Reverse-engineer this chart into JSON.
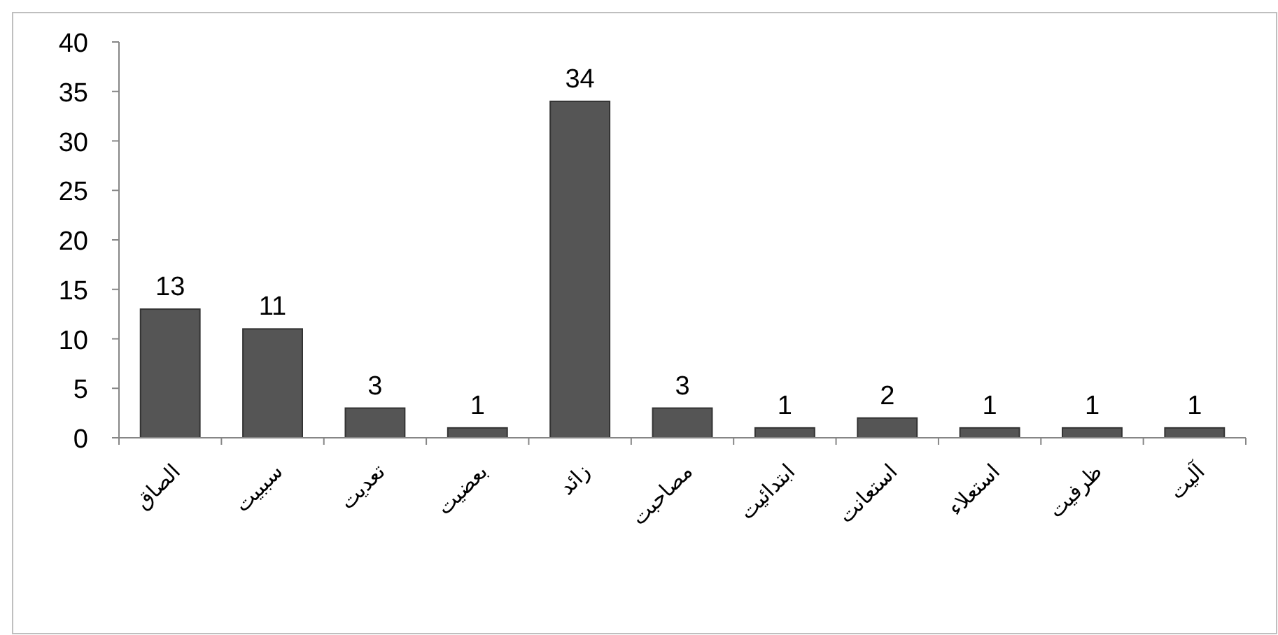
{
  "chart_data": {
    "type": "bar",
    "categories": [
      "الصاق",
      "سببیت",
      "تعدیت",
      "بعضیت",
      "زائد",
      "مصاحبت",
      "ابتدائیت",
      "استعانت",
      "استعلاء",
      "ظرفیت",
      "آلیت"
    ],
    "values": [
      13,
      11,
      3,
      1,
      34,
      3,
      1,
      2,
      1,
      1,
      1
    ],
    "color": "#555555",
    "ylim": [
      0,
      40
    ],
    "yticks": [
      0,
      5,
      10,
      15,
      20,
      25,
      30,
      35,
      40
    ],
    "data_labels": true
  }
}
